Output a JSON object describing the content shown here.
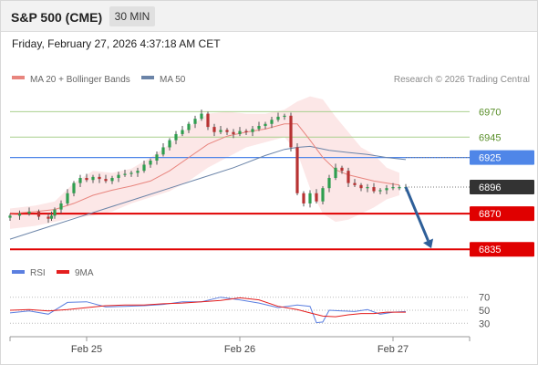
{
  "header": {
    "title": "S&P 500 (CME)",
    "timeframe": "30 MIN"
  },
  "timestamp": "Friday, February 27, 2026 4:37:18 AM CET",
  "legend": {
    "ma20": "MA 20 + Bollinger Bands",
    "ma50": "MA 50",
    "copyright": "Research © 2026 Trading Central",
    "rsi": "RSI",
    "rsi_ma": "9MA"
  },
  "colors": {
    "ma20_line": "#e8857e",
    "bollinger_fill": "#fbe3e3",
    "ma50_line": "#6b84a8",
    "candle_up": "#2f9e4f",
    "candle_down": "#b73232",
    "resistance": "#a9d08e",
    "resistance_text": "#5a8f2a",
    "pivot": "#4f86e8",
    "support": "#e00000",
    "last_price": "#333333",
    "arrow": "#2e5f99",
    "rsi_line": "#5b7fe0",
    "rsi_ma_line": "#e41e1e"
  },
  "icons": {
    "ma20_swatch": "color-swatch",
    "ma50_swatch": "color-swatch",
    "rsi_swatch": "color-swatch",
    "rsi_ma_swatch": "color-swatch",
    "forecast_arrow": "arrow-down-right"
  },
  "chart_data": [
    {
      "type": "line",
      "title": "S&P 500 (CME)",
      "price_levels": [
        {
          "value": 6970,
          "label": "6970",
          "kind": "resistance"
        },
        {
          "value": 6945,
          "label": "6945",
          "kind": "resistance"
        },
        {
          "value": 6925,
          "label": "6925",
          "kind": "pivot"
        },
        {
          "value": 6896,
          "label": "6896",
          "kind": "last_price"
        },
        {
          "value": 6870,
          "label": "6870",
          "kind": "support"
        },
        {
          "value": 6835,
          "label": "6835",
          "kind": "support"
        }
      ],
      "x_ticks": [
        {
          "x": 24,
          "label": "Feb 25"
        },
        {
          "x": 72,
          "label": "Feb 26"
        },
        {
          "x": 120,
          "label": "Feb 27"
        }
      ],
      "ylim": [
        6820,
        6990
      ],
      "xlim": [
        0,
        144
      ],
      "candle_series": {
        "x": [
          0,
          3,
          6,
          9,
          12,
          13,
          14,
          16,
          18,
          20,
          22,
          24,
          26,
          28,
          30,
          32,
          34,
          36,
          38,
          40,
          42,
          44,
          46,
          48,
          50,
          52,
          54,
          56,
          58,
          60,
          62,
          64,
          66,
          68,
          70,
          72,
          74,
          76,
          78,
          80,
          82,
          84,
          86,
          88,
          90,
          92,
          94,
          96,
          98,
          100,
          102,
          104,
          106,
          108,
          110,
          112,
          114,
          116,
          118,
          120,
          122,
          124
        ],
        "close": [
          6868,
          6870,
          6872,
          6867,
          6865,
          6868,
          6874,
          6880,
          6890,
          6900,
          6905,
          6903,
          6906,
          6904,
          6902,
          6905,
          6908,
          6909,
          6910,
          6912,
          6918,
          6922,
          6928,
          6935,
          6942,
          6948,
          6952,
          6958,
          6963,
          6968,
          6955,
          6950,
          6952,
          6950,
          6948,
          6951,
          6950,
          6953,
          6956,
          6958,
          6962,
          6965,
          6966,
          6935,
          6890,
          6880,
          6890,
          6882,
          6895,
          6905,
          6915,
          6912,
          6900,
          6898,
          6895,
          6896,
          6892,
          6893,
          6895,
          6896,
          6896,
          6896
        ]
      },
      "ma20": {
        "x": [
          0,
          8,
          14,
          20,
          26,
          32,
          38,
          44,
          50,
          56,
          62,
          68,
          74,
          80,
          86,
          90,
          94,
          98,
          102,
          106,
          110,
          114,
          118,
          122
        ],
        "values": [
          6870,
          6872,
          6874,
          6880,
          6888,
          6893,
          6897,
          6902,
          6912,
          6925,
          6938,
          6946,
          6950,
          6953,
          6958,
          6958,
          6942,
          6925,
          6913,
          6908,
          6905,
          6902,
          6900,
          6898
        ]
      },
      "bollinger": {
        "x": [
          0,
          8,
          14,
          20,
          26,
          32,
          38,
          44,
          50,
          56,
          62,
          68,
          74,
          80,
          86,
          90,
          94,
          98,
          102,
          106,
          110,
          114,
          118,
          122
        ],
        "upper": [
          6875,
          6878,
          6882,
          6900,
          6912,
          6910,
          6914,
          6925,
          6938,
          6955,
          6968,
          6970,
          6968,
          6968,
          6972,
          6980,
          6985,
          6982,
          6965,
          6950,
          6935,
          6928,
          6915,
          6910
        ],
        "lower": [
          6855,
          6858,
          6862,
          6866,
          6868,
          6872,
          6880,
          6886,
          6892,
          6902,
          6915,
          6925,
          6935,
          6940,
          6945,
          6930,
          6895,
          6870,
          6862,
          6864,
          6870,
          6876,
          6884,
          6888
        ]
      },
      "ma50": {
        "x": [
          0,
          10,
          20,
          30,
          40,
          50,
          60,
          70,
          80,
          86,
          90,
          94,
          100,
          106,
          112,
          118,
          124
        ],
        "values": [
          6845,
          6855,
          6865,
          6875,
          6885,
          6895,
          6905,
          6915,
          6927,
          6933,
          6935,
          6936,
          6932,
          6930,
          6928,
          6925,
          6923
        ]
      },
      "forecast_arrow": {
        "from": {
          "x": 124,
          "y": 6896
        },
        "to": {
          "x": 132,
          "y": 6836
        }
      }
    },
    {
      "type": "line",
      "title": "RSI",
      "series": [
        {
          "name": "RSI",
          "x": [
            0,
            6,
            12,
            18,
            24,
            30,
            36,
            42,
            48,
            54,
            60,
            66,
            72,
            78,
            84,
            90,
            94,
            96,
            98,
            100,
            104,
            108,
            112,
            116,
            120,
            124
          ],
          "values": [
            46,
            49,
            44,
            62,
            63,
            55,
            56,
            57,
            59,
            63,
            63,
            70,
            66,
            61,
            54,
            58,
            56,
            31,
            32,
            50,
            49,
            48,
            51,
            44,
            47,
            48
          ]
        },
        {
          "name": "9MA",
          "x": [
            0,
            6,
            12,
            18,
            24,
            30,
            36,
            42,
            48,
            54,
            60,
            66,
            72,
            78,
            84,
            90,
            94,
            98,
            102,
            106,
            110,
            114,
            118,
            124
          ],
          "values": [
            50,
            51,
            49,
            51,
            54,
            57,
            58,
            58,
            60,
            61,
            63,
            65,
            69,
            66,
            56,
            51,
            46,
            41,
            40,
            43,
            45,
            45,
            47,
            47
          ]
        }
      ],
      "y_ticks": [
        70,
        50,
        30
      ],
      "ylim": [
        15,
        85
      ]
    }
  ]
}
